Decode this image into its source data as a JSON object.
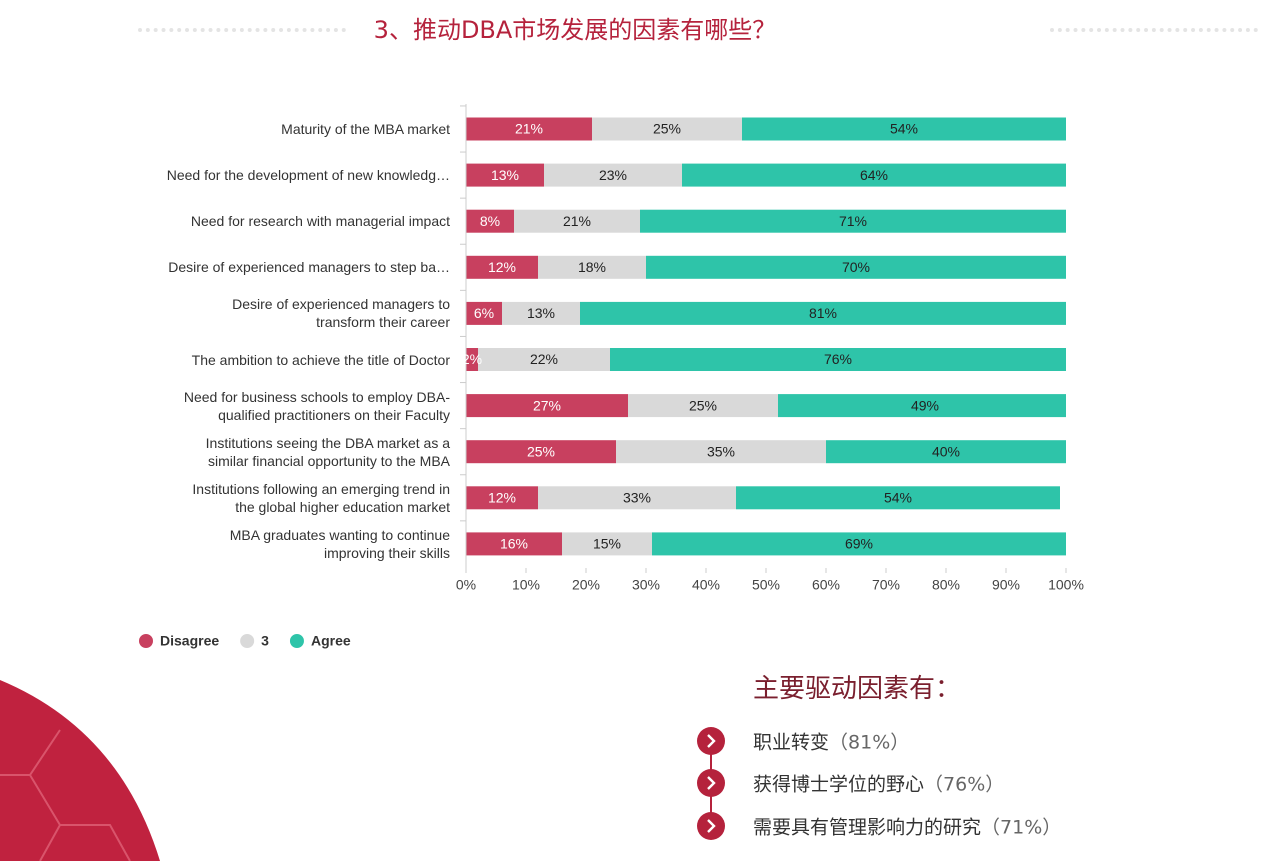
{
  "title": "3、推动DBA市场发展的因素有哪些？",
  "chart_data": {
    "type": "bar",
    "orientation": "horizontal",
    "stacked": true,
    "categories": [
      "Maturity of the MBA market",
      "Need for the development of new knowledg…",
      "Need for research with managerial impact",
      "Desire of experienced managers to step ba…",
      "Desire of experienced managers to\ntransform their career",
      "The ambition to achieve the title of Doctor",
      "Need for business schools to employ DBA-\nqualified practitioners on their Faculty",
      "Institutions seeing the DBA market as a\nsimilar financial opportunity to the MBA",
      "Institutions following an emerging trend in\nthe global higher education market",
      "MBA graduates wanting to continue\nimproving their skills"
    ],
    "series": [
      {
        "name": "Disagree",
        "color": "#c8405f",
        "values": [
          21,
          13,
          8,
          12,
          6,
          2,
          27,
          25,
          12,
          16
        ],
        "value_labels": [
          "21%",
          "13%",
          "8%",
          "12%",
          "6%",
          "2%",
          "27%",
          "25%",
          "12%",
          "16%"
        ]
      },
      {
        "name": "3",
        "color": "#d9d9d9",
        "values": [
          25,
          23,
          21,
          18,
          13,
          22,
          25,
          35,
          33,
          15
        ],
        "value_labels": [
          "25%",
          "23%",
          "21%",
          "18%",
          "13%",
          "22%",
          "25%",
          "35%",
          "33%",
          "15%"
        ]
      },
      {
        "name": "Agree",
        "color": "#2ec4a9",
        "values": [
          54,
          64,
          71,
          70,
          81,
          76,
          49,
          40,
          54,
          69
        ],
        "value_labels": [
          "54%",
          "64%",
          "71%",
          "70%",
          "81%",
          "76%",
          "49%",
          "40%",
          "54%",
          "69%"
        ]
      }
    ],
    "xlim": [
      0,
      100
    ],
    "xticks": [
      {
        "value": 0,
        "label": "0%"
      },
      {
        "value": 10,
        "label": "10%"
      },
      {
        "value": 20,
        "label": "20%"
      },
      {
        "value": 30,
        "label": "30%"
      },
      {
        "value": 40,
        "label": "40%"
      },
      {
        "value": 50,
        "label": "50%"
      },
      {
        "value": 60,
        "label": "60%"
      },
      {
        "value": 70,
        "label": "70%"
      },
      {
        "value": 80,
        "label": "80%"
      },
      {
        "value": 90,
        "label": "90%"
      },
      {
        "value": 100,
        "label": "100%"
      }
    ],
    "legend": "bottom-left"
  },
  "summary": {
    "heading": "主要驱动因素有：",
    "items": [
      {
        "text": "职业转变",
        "note": "（81%）"
      },
      {
        "text": "获得博士学位的野心",
        "note": "（76%）"
      },
      {
        "text": "需要具有管理影响力的研究",
        "note": "（71%）"
      }
    ]
  }
}
